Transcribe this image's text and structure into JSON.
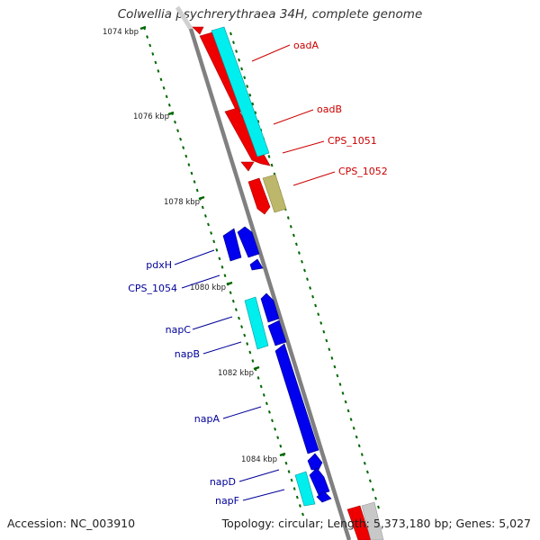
{
  "title": "Colwellia psychrerythraea 34H, complete genome",
  "footer": {
    "accession": "Accession: NC_003910",
    "summary": "Topology: circular; Length: 5,373,180 bp; Genes: 5,027"
  },
  "scale_labels": [
    "1074 kbp",
    "1076 kbp",
    "1078 kbp",
    "1080 kbp",
    "1082 kbp",
    "1084 kbp"
  ],
  "gene_labels": {
    "right": [
      "oadA",
      "oadB",
      "CPS_1051",
      "CPS_1052"
    ],
    "left": [
      "pdxH",
      "CPS_1054",
      "napC",
      "napB",
      "napA",
      "napD",
      "napF"
    ]
  },
  "colors": {
    "label_red": "#cc0000",
    "label_blue": "#000099",
    "gene_red": "#ee0000",
    "gene_blue": "#0000ee",
    "gene_cyan": "#00eeee",
    "gene_khaki": "#bdb76b",
    "backbone": "#808080",
    "ticks": "#006600"
  }
}
